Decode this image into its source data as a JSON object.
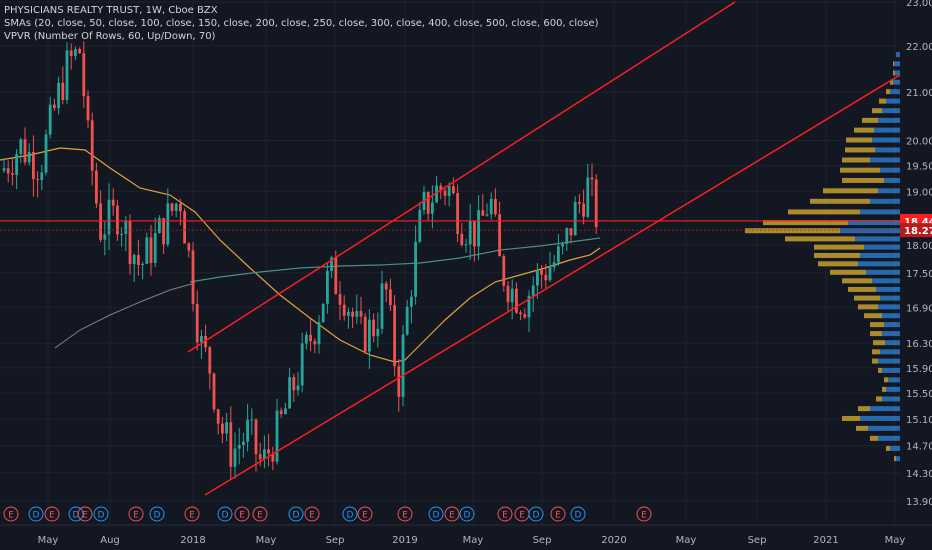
{
  "chart_data": {
    "type": "candlestick",
    "legend": {
      "symbol_line": "PHYSICIANS REALTY TRUST, 1W, Cboe BZX",
      "sma_line": "SMAs (20, close, 50, close, 100, close, 150, close, 200, close, 250, close, 300, close, 400, close, 500, close, 600, close)",
      "vpvr_line": "VPVR (Number Of Rows, 60, Up/Down, 70)"
    },
    "y_axis": {
      "ticks": [
        "23.00",
        "22.00",
        "21.00",
        "20.00",
        "19.50",
        "19.00",
        "18.00",
        "17.50",
        "16.90",
        "16.30",
        "15.90",
        "15.50",
        "15.10",
        "14.70",
        "14.30",
        "13.90"
      ],
      "scale": "log"
    },
    "x_axis": {
      "ticks": [
        "May",
        "Aug",
        "2018",
        "May",
        "Sep",
        "2019",
        "May",
        "Sep",
        "2020",
        "May",
        "Sep",
        "2021",
        "May"
      ]
    },
    "price_lines": [
      {
        "label": "18.44",
        "value": 18.44,
        "color": "#ff1e1e"
      },
      {
        "label": "18.27",
        "value": 18.27,
        "color": "#b71c1c"
      }
    ],
    "events": [
      "E",
      "D",
      "E",
      "D",
      "E",
      "D",
      "E",
      "D",
      "E",
      "D",
      "E",
      "E",
      "D",
      "E",
      "D",
      "E",
      "E",
      "D",
      "E",
      "D",
      "E",
      "E",
      "D",
      "E",
      "D",
      "E",
      "D",
      "E"
    ],
    "colors": {
      "up": "#26a69a",
      "down": "#ef5350",
      "trendline": "#ff1e1e",
      "sma_orange": "#e1a23a",
      "sma_teal": "#4c8f80",
      "sma_gray": "#7d8189",
      "vpvr_up": "#2a78c6",
      "vpvr_down": "#c8a02c"
    }
  }
}
